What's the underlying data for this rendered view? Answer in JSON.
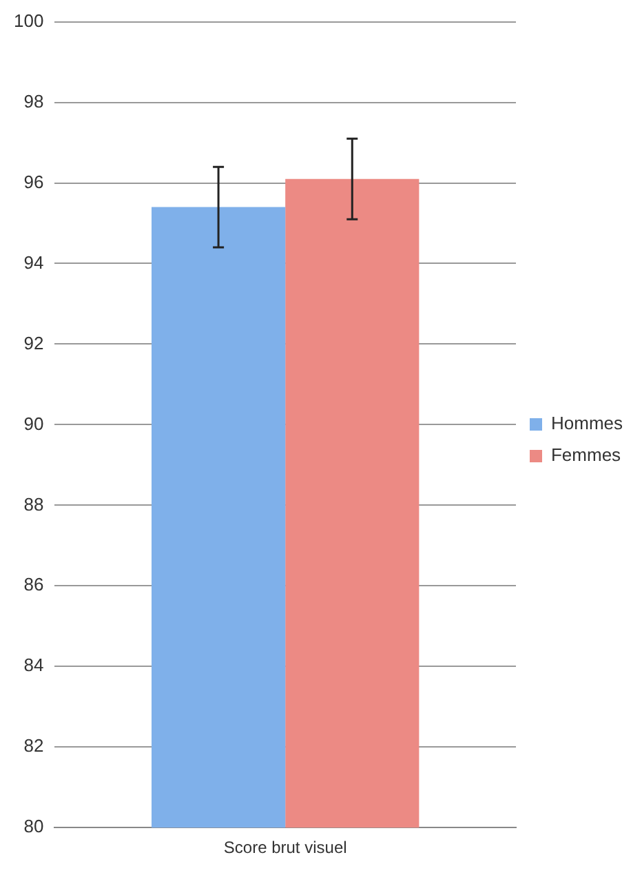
{
  "chart_data": {
    "type": "bar",
    "categories": [
      "Score brut visuel"
    ],
    "series": [
      {
        "name": "Hommes",
        "color": "#7fb0ea",
        "values": [
          95.4
        ],
        "errors": [
          1.0
        ]
      },
      {
        "name": "Femmes",
        "color": "#ec8a84",
        "values": [
          96.1
        ],
        "errors": [
          1.0
        ]
      }
    ],
    "ylim": [
      80,
      100
    ],
    "yticks": [
      80,
      82,
      84,
      86,
      88,
      90,
      92,
      94,
      96,
      98,
      100
    ],
    "grid": "y",
    "legend": "right"
  }
}
